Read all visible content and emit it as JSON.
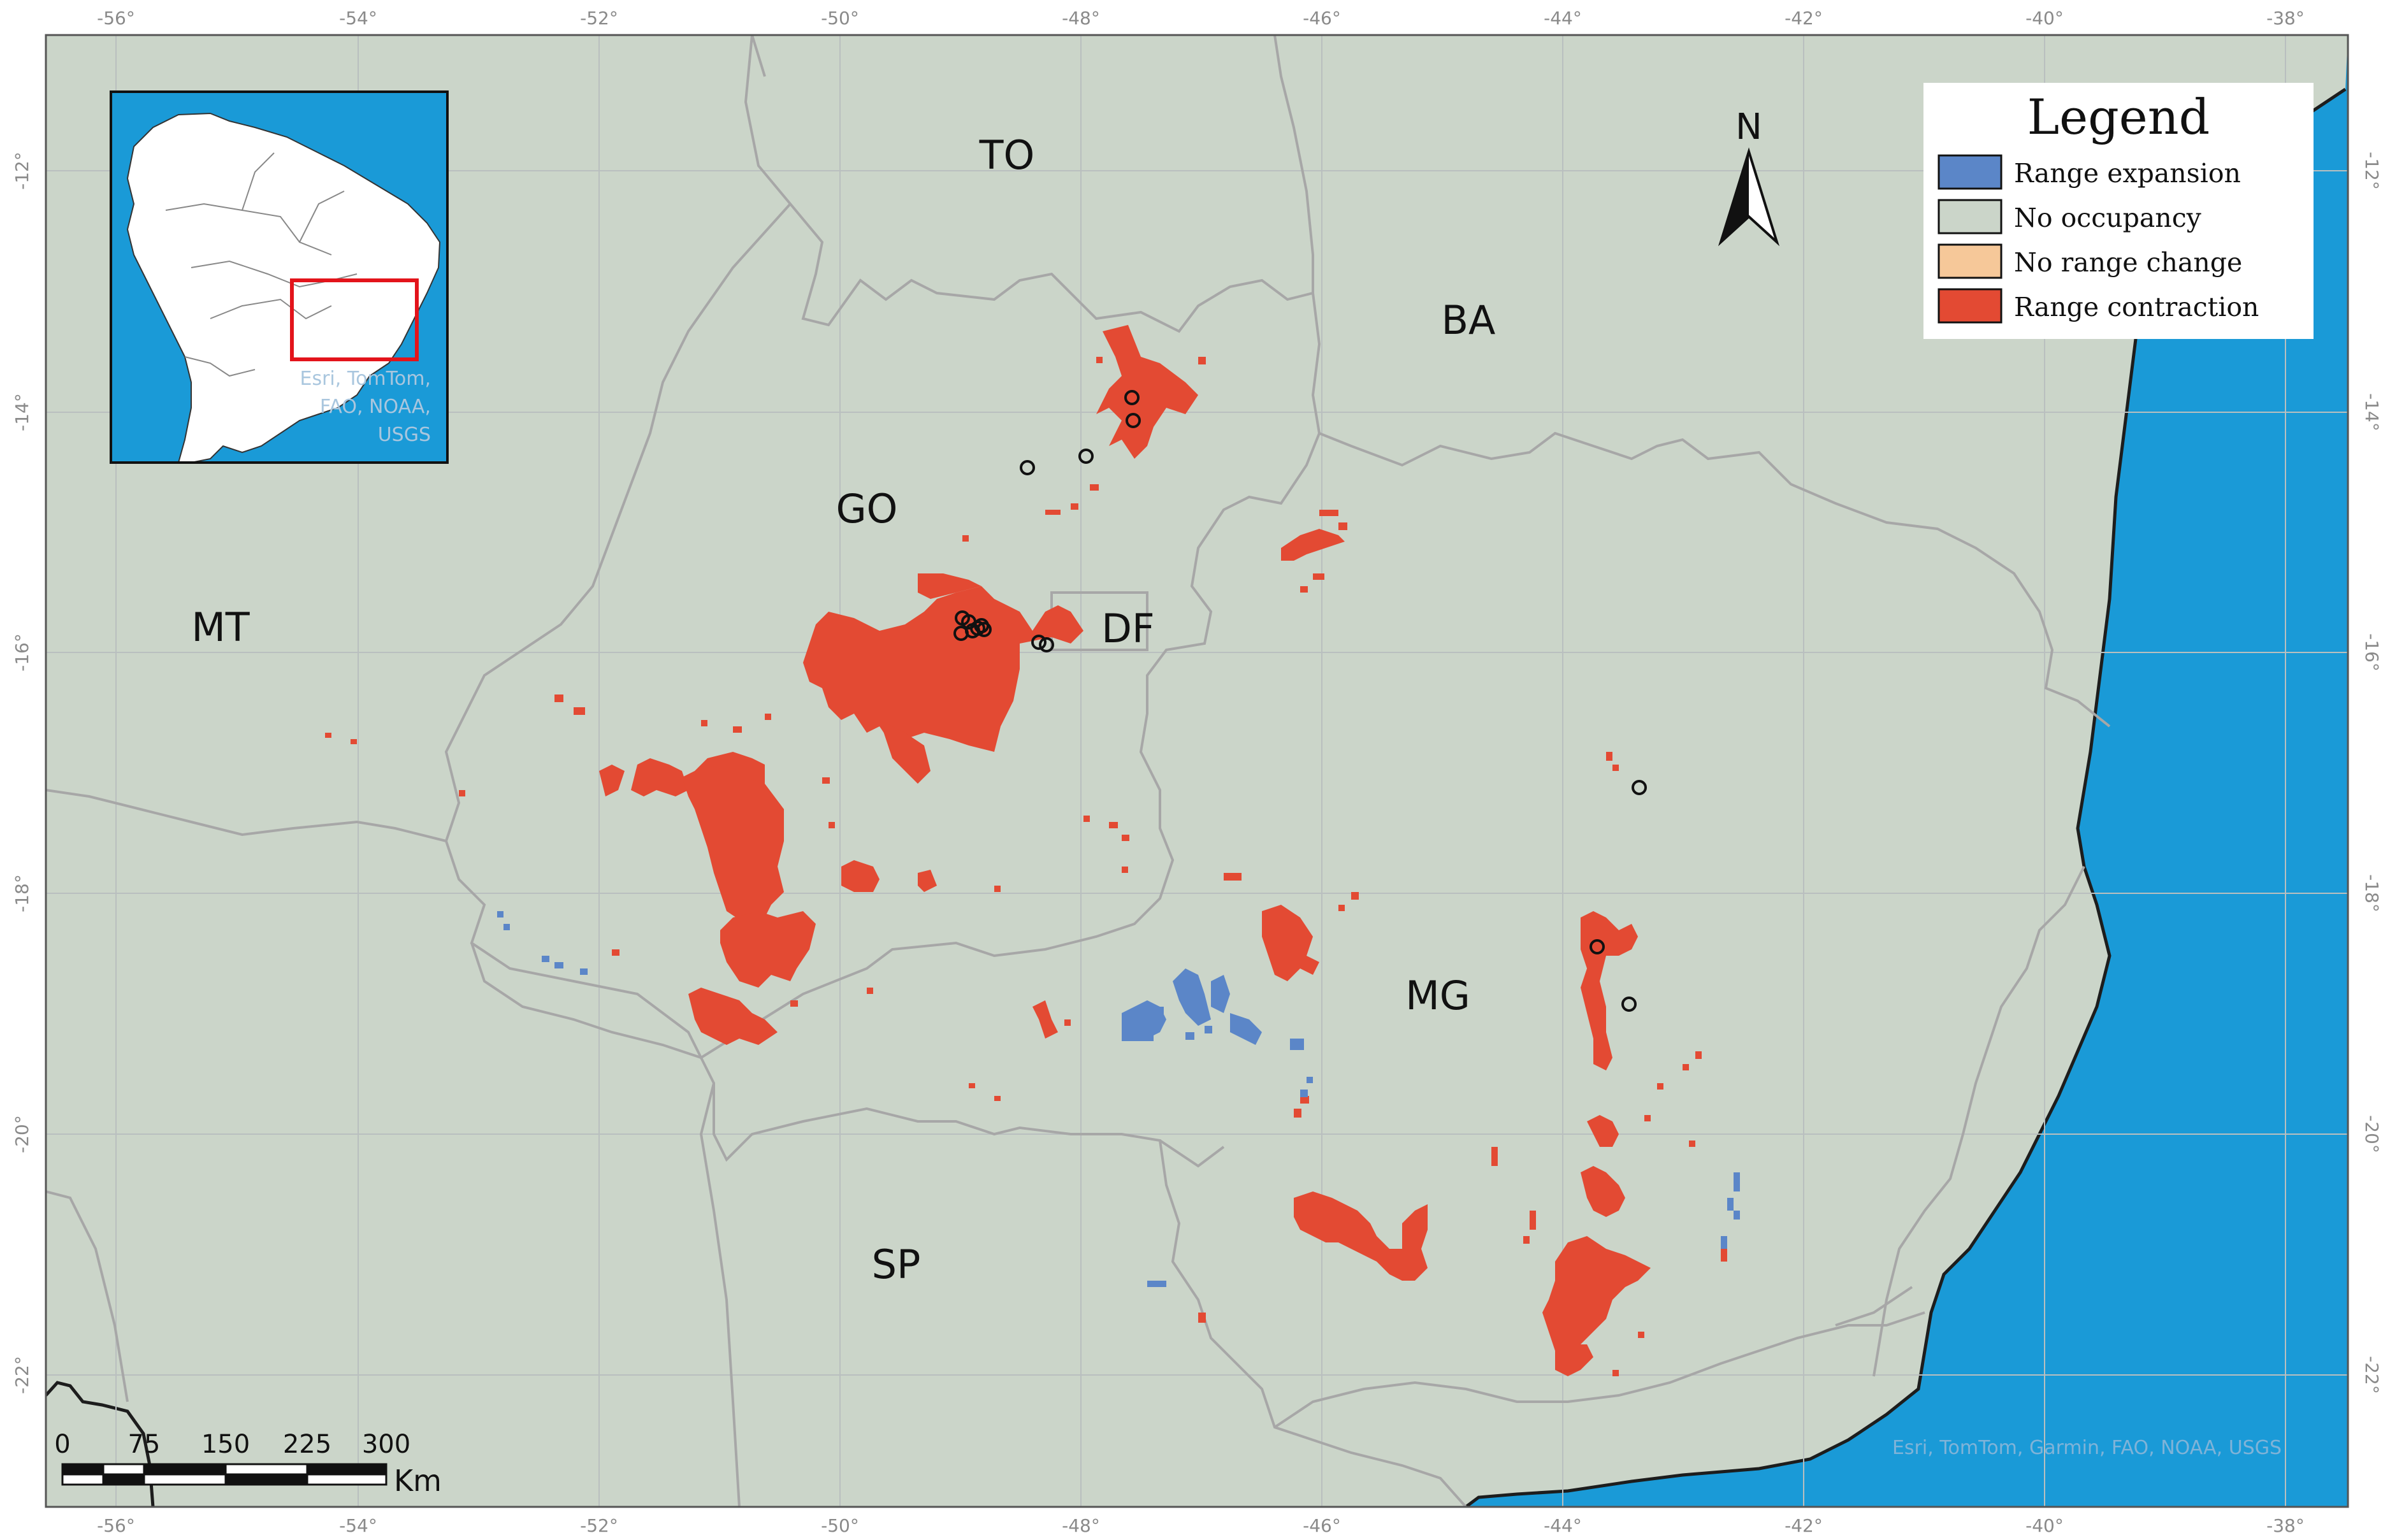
{
  "colors": {
    "land": "#cbd5c9",
    "ocean": "#1a9ad7",
    "range_expansion": "#5b86c8",
    "no_occupancy": "#cbd5c9",
    "no_range_change": "#f6c899",
    "range_contraction": "#e34a33",
    "border": "#a7a7a7",
    "grid": "#b9bfbf",
    "inset_box": "#e3141b"
  },
  "graticule": {
    "top_labels": [
      "-56°",
      "-54°",
      "-52°",
      "-50°",
      "-48°",
      "-46°",
      "-44°",
      "-42°",
      "-40°",
      "-38°"
    ],
    "bottom_labels": [
      "-56°",
      "-54°",
      "-52°",
      "-50°",
      "-48°",
      "-46°",
      "-44°",
      "-42°",
      "-40°",
      "-38°"
    ],
    "left_labels": [
      "-12°",
      "-14°",
      "-16°",
      "-18°",
      "-20°",
      "-22°"
    ],
    "right_labels": [
      "-12°",
      "-14°",
      "-16°",
      "-18°",
      "-20°",
      "-22°"
    ]
  },
  "states": {
    "TO": "TO",
    "BA": "BA",
    "GO": "GO",
    "MT": "MT",
    "DF": "DF",
    "MG": "MG",
    "SP": "SP"
  },
  "legend": {
    "title": "Legend",
    "items": [
      {
        "label": "Range expansion",
        "color": "#5b86c8"
      },
      {
        "label": "No occupancy",
        "color": "#cbd5c9"
      },
      {
        "label": "No range change",
        "color": "#f6c899"
      },
      {
        "label": "Range contraction",
        "color": "#e34a33"
      }
    ]
  },
  "north_arrow": {
    "label": "N"
  },
  "scale_bar": {
    "ticks": [
      "0",
      "75",
      "150",
      "225",
      "300"
    ],
    "unit": "Km"
  },
  "inset": {
    "attribution": [
      "Esri, TomTom,",
      "FAO, NOAA,",
      "USGS"
    ]
  },
  "attribution": "Esri, TomTom, Garmin, FAO, NOAA, USGS",
  "occurrence_points": {
    "count": 16
  }
}
